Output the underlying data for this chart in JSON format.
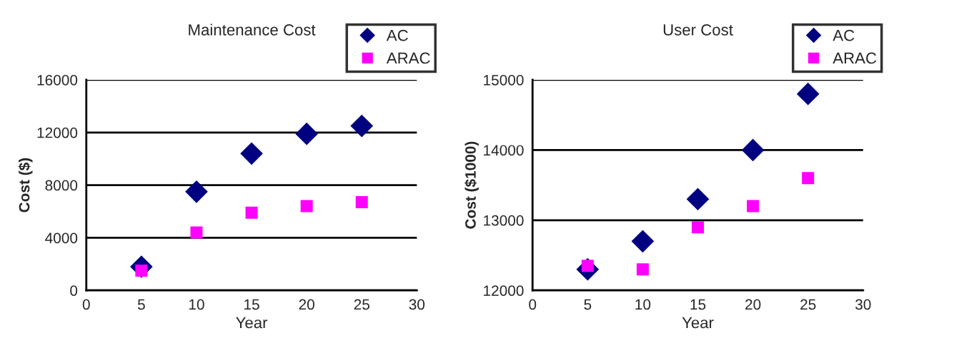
{
  "chart_data": [
    {
      "type": "scatter",
      "title": "Maintenance Cost",
      "xlabel": "Year",
      "ylabel": "Cost ($)",
      "x": [
        5,
        10,
        15,
        20,
        25
      ],
      "xlim": [
        0,
        30
      ],
      "xticks": [
        0,
        5,
        10,
        15,
        20,
        25,
        30
      ],
      "ylim": [
        0,
        16000
      ],
      "yticks": [
        0,
        4000,
        8000,
        12000,
        16000
      ],
      "grid": "y",
      "legend": "top right",
      "series": [
        {
          "name": "AC",
          "color": "#000080",
          "marker": "diamond",
          "values": [
            1800,
            7500,
            10400,
            11900,
            12500
          ]
        },
        {
          "name": "ARAC",
          "color": "#ff00ff",
          "marker": "square",
          "values": [
            1500,
            4400,
            5900,
            6400,
            6700
          ]
        }
      ]
    },
    {
      "type": "scatter",
      "title": "User Cost",
      "xlabel": "Year",
      "ylabel": "Cost ($1000)",
      "x": [
        5,
        10,
        15,
        20,
        25
      ],
      "xlim": [
        0,
        30
      ],
      "xticks": [
        0,
        5,
        10,
        15,
        20,
        25,
        30
      ],
      "ylim": [
        12000,
        15000
      ],
      "yticks": [
        12000,
        13000,
        14000,
        15000
      ],
      "grid": "y",
      "legend": "top right",
      "series": [
        {
          "name": "AC",
          "color": "#000080",
          "marker": "diamond",
          "values": [
            12300,
            12700,
            13300,
            14000,
            14800
          ]
        },
        {
          "name": "ARAC",
          "color": "#ff00ff",
          "marker": "square",
          "values": [
            12350,
            12300,
            12900,
            13200,
            13600
          ]
        }
      ]
    }
  ]
}
